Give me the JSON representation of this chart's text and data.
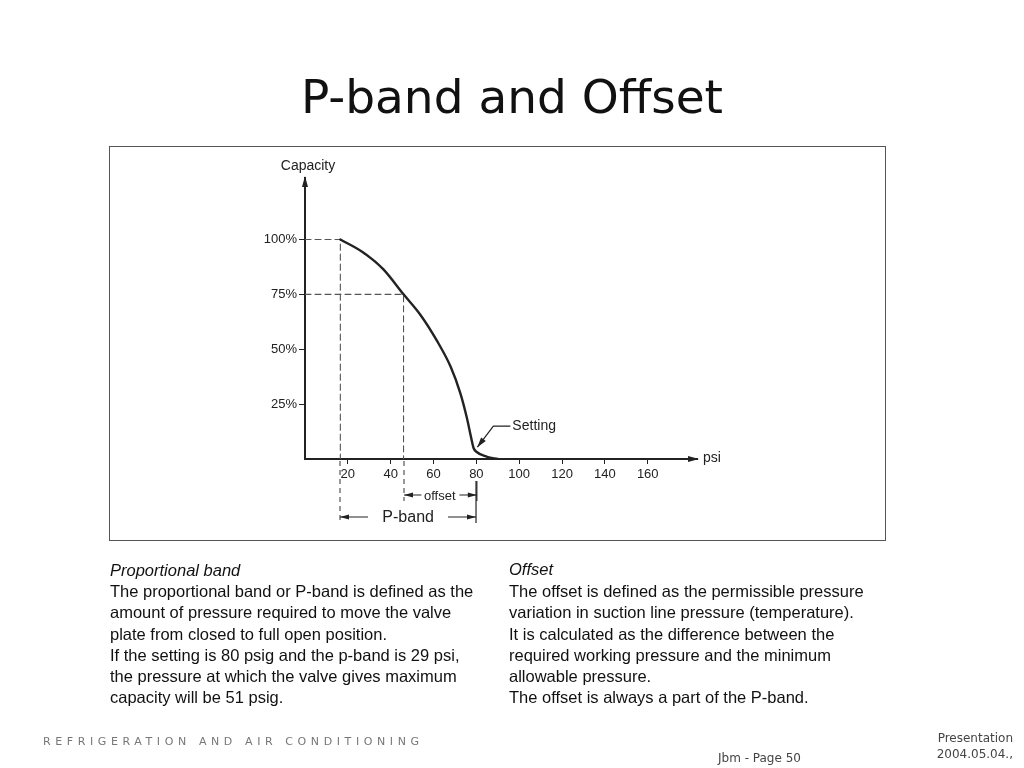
{
  "chart_data": {
    "type": "line",
    "title": "P-band and Offset",
    "xlabel": "psi",
    "ylabel": "Capacity",
    "xlim": [
      0,
      183
    ],
    "ylim": [
      0,
      128
    ],
    "xticks": [
      20,
      40,
      60,
      80,
      100,
      120,
      140,
      160
    ],
    "yticks": [
      {
        "value": 25,
        "label": "25%"
      },
      {
        "value": 50,
        "label": "50%"
      },
      {
        "value": 75,
        "label": "75%"
      },
      {
        "value": 100,
        "label": "100%"
      }
    ],
    "series": [
      {
        "color": "#222222",
        "x": [
          16.5,
          27,
          36.5,
          46,
          54,
          61.5,
          68,
          72.5,
          75.5,
          77.5,
          78.7,
          80,
          85,
          90
        ],
        "values": [
          100,
          94.2,
          86.5,
          75,
          65.5,
          54,
          42,
          30,
          19,
          10,
          5,
          3.3,
          1,
          0
        ]
      },
      {
        "color": "#555555",
        "line_style": "dashed",
        "x": [
          0,
          16.5,
          16.5
        ],
        "values": [
          100,
          100,
          0
        ]
      },
      {
        "color": "#555555",
        "line_style": "dashed",
        "x": [
          0,
          46,
          46
        ],
        "values": [
          75,
          75,
          0
        ]
      }
    ],
    "annotations": [
      {
        "text": "Setting",
        "x": 80,
        "y": 4
      },
      "offset",
      "P-band",
      "Proportional band",
      "The proportional band or P-band is defined as the\namount of pressure required to move the valve\nplate from closed to full open position.\nIf the setting is 80 psig and the p-band is 29 psi,\nthe pressure at which the valve gives maximum\ncapacity will be 51 psig.",
      "Offset",
      "The offset is defined as the permissible  pressure\nvariation in suction line pressure (temperature).\nIt is calculated as the difference between the\nrequired working pressure and the minimum\nallowable pressure.\nThe offset is always a part of the P-band.",
      "REFRIGERATION AND AIR CONDITIONING",
      "Presentation\n2004.05.04.,",
      "Jbm - Page 50"
    ]
  }
}
